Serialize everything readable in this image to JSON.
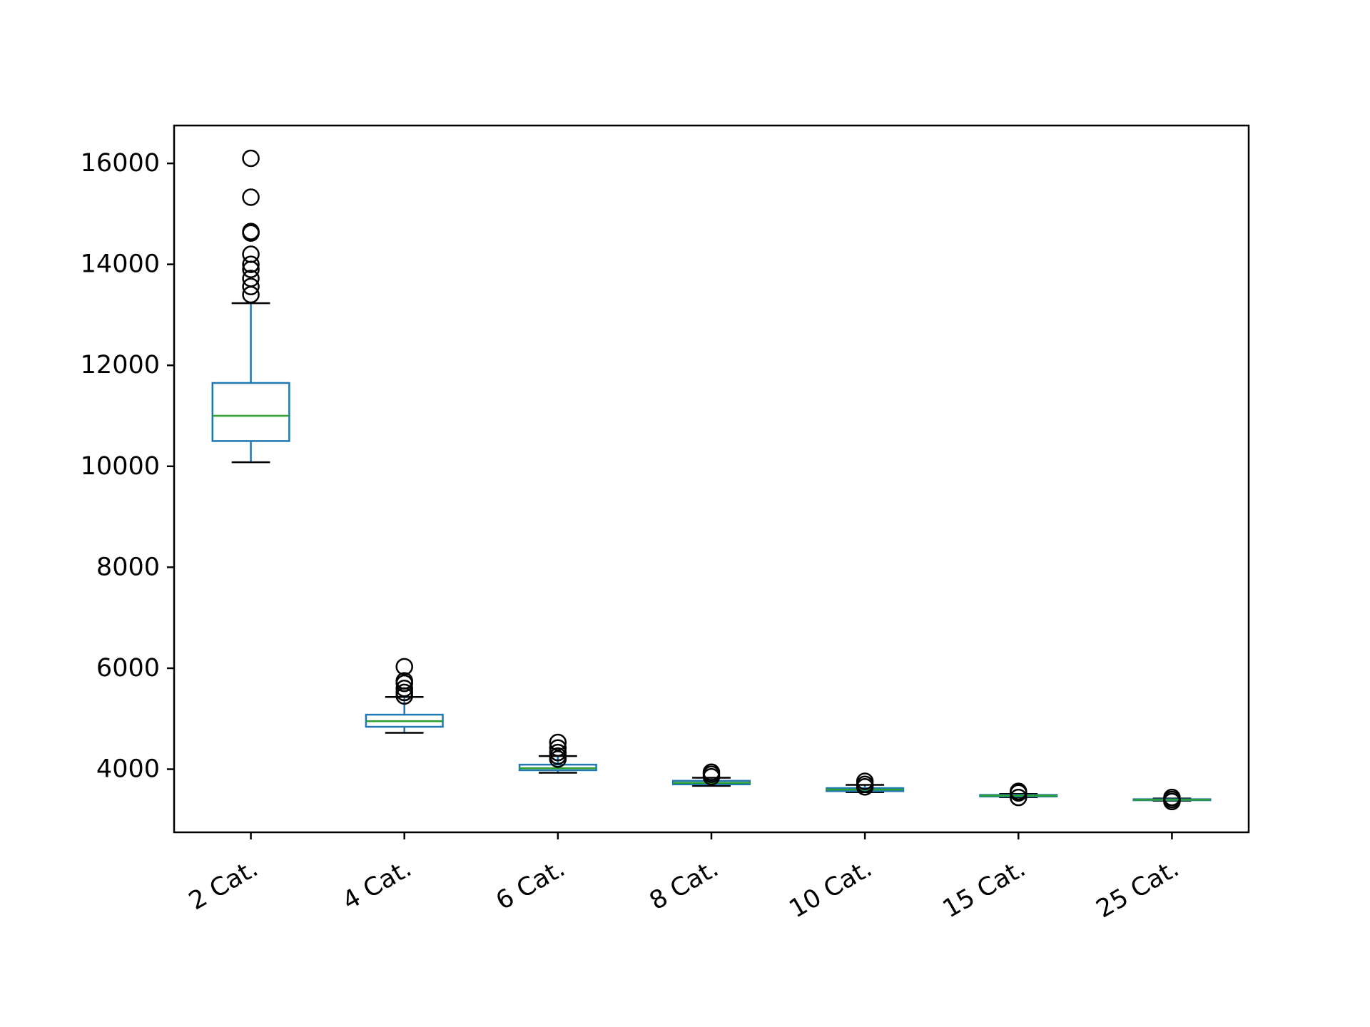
{
  "chart_data": {
    "type": "box",
    "title": "",
    "xlabel": "",
    "ylabel": "",
    "categories": [
      "2 Cat.",
      "4 Cat.",
      "6 Cat.",
      "8 Cat.",
      "10 Cat.",
      "15 Cat.",
      "25 Cat."
    ],
    "ylim": [
      2750,
      16750
    ],
    "yticks": [
      4000,
      6000,
      8000,
      10000,
      12000,
      14000,
      16000
    ],
    "ytick_labels": [
      "4000",
      "6000",
      "8000",
      "10000",
      "12000",
      "14000",
      "16000"
    ],
    "grid": false,
    "boxes": [
      {
        "category": "2 Cat.",
        "whisker_low": 10080,
        "q1": 10500,
        "median": 11000,
        "q3": 11650,
        "whisker_high": 13230,
        "outliers": [
          13400,
          13560,
          13720,
          13900,
          14000,
          14200,
          14620,
          14650,
          15330,
          16100
        ]
      },
      {
        "category": "4 Cat.",
        "whisker_low": 4720,
        "q1": 4840,
        "median": 4950,
        "q3": 5080,
        "whisker_high": 5430,
        "outliers": [
          5450,
          5520,
          5600,
          5700,
          5750,
          6030
        ]
      },
      {
        "category": "6 Cat.",
        "whisker_low": 3930,
        "q1": 3980,
        "median": 4020,
        "q3": 4090,
        "whisker_high": 4260,
        "outliers": [
          4200,
          4260,
          4330,
          4420,
          4530
        ]
      },
      {
        "category": "8 Cat.",
        "whisker_low": 3670,
        "q1": 3700,
        "median": 3730,
        "q3": 3770,
        "whisker_high": 3830,
        "outliers": [
          3850,
          3900,
          3940
        ]
      },
      {
        "category": "10 Cat.",
        "whisker_low": 3545,
        "q1": 3565,
        "median": 3595,
        "q3": 3625,
        "whisker_high": 3690,
        "outliers": [
          3650,
          3700,
          3760
        ]
      },
      {
        "category": "15 Cat.",
        "whisker_low": 3445,
        "q1": 3460,
        "median": 3475,
        "q3": 3490,
        "whisker_high": 3510,
        "outliers": [
          3440,
          3530,
          3560
        ]
      },
      {
        "category": "25 Cat.",
        "whisker_low": 3375,
        "q1": 3385,
        "median": 3395,
        "q3": 3405,
        "whisker_high": 3420,
        "outliers": [
          3360,
          3400,
          3440
        ]
      }
    ],
    "colors": {
      "box": "#1f77b4",
      "median": "#2ca02c",
      "whisker_cap": "#000000",
      "outlier": "#000000",
      "axes": "#000000"
    }
  }
}
